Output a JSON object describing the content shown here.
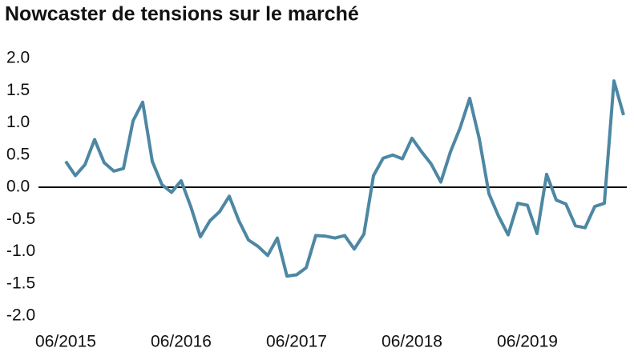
{
  "chart_data": {
    "type": "line",
    "title": "Nowcaster de tensions sur le marché",
    "categories": [
      "06/2015",
      null,
      null,
      null,
      null,
      null,
      null,
      null,
      null,
      null,
      null,
      null,
      "06/2016",
      null,
      null,
      null,
      null,
      null,
      null,
      null,
      null,
      null,
      null,
      null,
      "06/2017",
      null,
      null,
      null,
      null,
      null,
      null,
      null,
      null,
      null,
      null,
      null,
      "06/2018",
      null,
      null,
      null,
      null,
      null,
      null,
      null,
      null,
      null,
      null,
      null,
      "06/2019",
      null,
      null,
      null,
      null,
      null,
      null,
      null,
      null,
      null,
      null
    ],
    "series": [
      {
        "name": "Nowcaster",
        "color": "#4d87a3",
        "values": [
          0.4,
          0.18,
          0.35,
          0.74,
          0.38,
          0.25,
          0.29,
          1.03,
          1.32,
          0.4,
          0.04,
          -0.08,
          0.1,
          -0.3,
          -0.77,
          -0.52,
          -0.38,
          -0.14,
          -0.52,
          -0.82,
          -0.92,
          -1.06,
          -0.79,
          -1.38,
          -1.36,
          -1.25,
          -0.75,
          -0.76,
          -0.79,
          -0.75,
          -0.96,
          -0.73,
          0.18,
          0.45,
          0.5,
          0.44,
          0.76,
          0.55,
          0.36,
          0.08,
          0.55,
          0.92,
          1.38,
          0.75,
          -0.1,
          -0.45,
          -0.74,
          -0.25,
          -0.28,
          -0.72,
          0.2,
          -0.2,
          -0.26,
          -0.6,
          -0.63,
          -0.3,
          -0.25,
          1.65,
          1.12
        ]
      }
    ],
    "ylim": [
      -2.0,
      2.0
    ],
    "yticks": [
      {
        "value": 2.0,
        "label": "2.0"
      },
      {
        "value": 1.5,
        "label": "1.5"
      },
      {
        "value": 1.0,
        "label": "1.0"
      },
      {
        "value": 0.5,
        "label": "0.5"
      },
      {
        "value": 0.0,
        "label": "0.0"
      },
      {
        "value": -0.5,
        "label": "-0.5"
      },
      {
        "value": -1.0,
        "label": "-1.0"
      },
      {
        "value": -1.5,
        "label": "-1.5"
      },
      {
        "value": -2.0,
        "label": "-2.0"
      }
    ],
    "grid": false
  }
}
